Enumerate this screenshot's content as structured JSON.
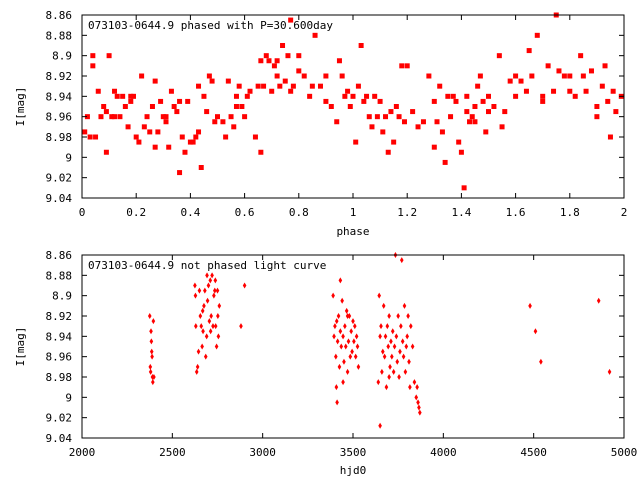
{
  "chart_data": [
    {
      "type": "scatter",
      "title": "073103-0644.9 phased with P=30.600day",
      "xlabel": "phase",
      "ylabel": "I[mag]",
      "xlim": [
        0,
        2
      ],
      "ylim": [
        9.04,
        8.86
      ],
      "y_inverted": true,
      "marker_color": "#ff0000",
      "marker": "filled-dot",
      "xticks": [
        "0",
        "0.2",
        "0.4",
        "0.6",
        "0.8",
        "1",
        "1.2",
        "1.4",
        "1.6",
        "1.8",
        "2"
      ],
      "xtick_values": [
        0,
        0.2,
        0.4,
        0.6,
        0.8,
        1,
        1.2,
        1.4,
        1.6,
        1.8,
        2
      ],
      "yticks": [
        "8.86",
        "8.88",
        "8.9",
        "8.92",
        "8.94",
        "8.96",
        "8.98",
        "9",
        "9.02",
        "9.04"
      ],
      "ytick_values": [
        8.86,
        8.88,
        8.9,
        8.92,
        8.94,
        8.96,
        8.98,
        9.0,
        9.02,
        9.04
      ],
      "points": [
        [
          0.01,
          8.975
        ],
        [
          0.02,
          8.96
        ],
        [
          0.03,
          8.98
        ],
        [
          0.04,
          8.9
        ],
        [
          0.05,
          8.98
        ],
        [
          0.06,
          8.935
        ],
        [
          0.07,
          8.96
        ],
        [
          0.08,
          8.95
        ],
        [
          0.09,
          8.995
        ],
        [
          0.1,
          8.9
        ],
        [
          0.11,
          8.96
        ],
        [
          0.12,
          8.96
        ],
        [
          0.13,
          8.94
        ],
        [
          0.15,
          8.94
        ],
        [
          0.16,
          8.95
        ],
        [
          0.17,
          8.97
        ],
        [
          0.18,
          8.94
        ],
        [
          0.19,
          8.94
        ],
        [
          0.2,
          8.98
        ],
        [
          0.21,
          8.985
        ],
        [
          0.22,
          8.92
        ],
        [
          0.23,
          8.97
        ],
        [
          0.25,
          8.975
        ],
        [
          0.27,
          8.99
        ],
        [
          0.04,
          8.91
        ],
        [
          0.09,
          8.955
        ],
        [
          0.12,
          8.935
        ],
        [
          0.14,
          8.96
        ],
        [
          0.18,
          8.945
        ],
        [
          0.24,
          8.96
        ],
        [
          0.26,
          8.95
        ],
        [
          0.28,
          8.975
        ],
        [
          0.29,
          8.945
        ],
        [
          0.3,
          8.96
        ],
        [
          0.31,
          8.96
        ],
        [
          0.32,
          8.99
        ],
        [
          0.33,
          8.935
        ],
        [
          0.34,
          8.95
        ],
        [
          0.35,
          8.955
        ],
        [
          0.36,
          9.015
        ],
        [
          0.37,
          8.98
        ],
        [
          0.38,
          8.995
        ],
        [
          0.39,
          8.945
        ],
        [
          0.4,
          8.985
        ],
        [
          0.41,
          8.985
        ],
        [
          0.42,
          8.98
        ],
        [
          0.43,
          8.975
        ],
        [
          0.44,
          9.01
        ],
        [
          0.45,
          8.94
        ],
        [
          0.46,
          8.955
        ],
        [
          0.47,
          8.92
        ],
        [
          0.48,
          8.925
        ],
        [
          0.5,
          8.96
        ],
        [
          0.52,
          8.965
        ],
        [
          0.53,
          8.98
        ],
        [
          0.54,
          8.925
        ],
        [
          0.55,
          8.96
        ],
        [
          0.56,
          8.97
        ],
        [
          0.57,
          8.95
        ],
        [
          0.58,
          8.93
        ],
        [
          0.59,
          8.95
        ],
        [
          0.6,
          8.96
        ],
        [
          0.61,
          8.94
        ],
        [
          0.62,
          8.935
        ],
        [
          0.64,
          8.98
        ],
        [
          0.65,
          8.93
        ],
        [
          0.66,
          8.995
        ],
        [
          0.67,
          8.93
        ],
        [
          0.68,
          8.9
        ],
        [
          0.69,
          8.905
        ],
        [
          0.7,
          8.935
        ],
        [
          0.71,
          8.91
        ],
        [
          0.72,
          8.92
        ],
        [
          0.73,
          8.93
        ],
        [
          0.74,
          8.89
        ],
        [
          0.75,
          8.925
        ],
        [
          0.76,
          8.9
        ],
        [
          0.77,
          8.935
        ],
        [
          0.78,
          8.93
        ],
        [
          0.8,
          8.915
        ],
        [
          0.82,
          8.92
        ],
        [
          0.84,
          8.94
        ],
        [
          0.86,
          8.88
        ],
        [
          0.88,
          8.93
        ],
        [
          0.9,
          8.945
        ],
        [
          0.92,
          8.95
        ],
        [
          0.94,
          8.965
        ],
        [
          0.96,
          8.92
        ],
        [
          0.97,
          8.94
        ],
        [
          0.98,
          8.935
        ],
        [
          0.99,
          8.95
        ],
        [
          1.0,
          8.94
        ],
        [
          0.27,
          8.925
        ],
        [
          0.31,
          8.965
        ],
        [
          0.36,
          8.945
        ],
        [
          0.43,
          8.93
        ],
        [
          0.49,
          8.965
        ],
        [
          0.57,
          8.94
        ],
        [
          0.66,
          8.905
        ],
        [
          0.72,
          8.905
        ],
        [
          0.77,
          8.865
        ],
        [
          0.8,
          8.9
        ],
        [
          0.85,
          8.93
        ],
        [
          0.9,
          8.92
        ],
        [
          0.95,
          8.905
        ],
        [
          1.01,
          8.985
        ],
        [
          1.02,
          8.93
        ],
        [
          1.03,
          8.89
        ],
        [
          1.04,
          8.945
        ],
        [
          1.05,
          8.94
        ],
        [
          1.06,
          8.96
        ],
        [
          1.07,
          8.97
        ],
        [
          1.08,
          8.94
        ],
        [
          1.09,
          8.96
        ],
        [
          1.1,
          8.945
        ],
        [
          1.11,
          8.975
        ],
        [
          1.12,
          8.96
        ],
        [
          1.13,
          8.995
        ],
        [
          1.14,
          8.955
        ],
        [
          1.15,
          8.985
        ],
        [
          1.16,
          8.95
        ],
        [
          1.17,
          8.96
        ],
        [
          1.18,
          8.91
        ],
        [
          1.19,
          8.965
        ],
        [
          1.2,
          8.91
        ],
        [
          1.22,
          8.955
        ],
        [
          1.24,
          8.97
        ],
        [
          1.26,
          8.965
        ],
        [
          1.28,
          8.92
        ],
        [
          1.3,
          8.945
        ],
        [
          1.31,
          8.965
        ],
        [
          1.32,
          8.93
        ],
        [
          1.33,
          8.975
        ],
        [
          1.35,
          8.94
        ],
        [
          1.36,
          8.96
        ],
        [
          1.37,
          8.94
        ],
        [
          1.38,
          8.945
        ],
        [
          1.39,
          8.985
        ],
        [
          1.4,
          8.995
        ],
        [
          1.41,
          9.03
        ],
        [
          1.42,
          8.94
        ],
        [
          1.43,
          8.965
        ],
        [
          1.44,
          8.96
        ],
        [
          1.45,
          8.95
        ],
        [
          1.46,
          8.93
        ],
        [
          1.47,
          8.92
        ],
        [
          1.48,
          8.945
        ],
        [
          1.49,
          8.975
        ],
        [
          1.5,
          8.94
        ],
        [
          1.52,
          8.95
        ],
        [
          1.54,
          8.9
        ],
        [
          1.56,
          8.955
        ],
        [
          1.58,
          8.925
        ],
        [
          1.6,
          8.94
        ],
        [
          1.62,
          8.925
        ],
        [
          1.64,
          8.935
        ],
        [
          1.66,
          8.92
        ],
        [
          1.68,
          8.88
        ],
        [
          1.7,
          8.94
        ],
        [
          1.72,
          8.91
        ],
        [
          1.74,
          8.935
        ],
        [
          1.75,
          8.86
        ],
        [
          1.76,
          8.915
        ],
        [
          1.78,
          8.92
        ],
        [
          1.8,
          8.935
        ],
        [
          1.82,
          8.94
        ],
        [
          1.84,
          8.9
        ],
        [
          1.85,
          8.92
        ],
        [
          1.86,
          8.935
        ],
        [
          1.88,
          8.915
        ],
        [
          1.9,
          8.95
        ],
        [
          1.92,
          8.93
        ],
        [
          1.93,
          8.91
        ],
        [
          1.94,
          8.945
        ],
        [
          1.96,
          8.935
        ],
        [
          1.97,
          8.955
        ],
        [
          1.99,
          8.94
        ],
        [
          1.3,
          8.99
        ],
        [
          1.34,
          9.005
        ],
        [
          1.42,
          8.955
        ],
        [
          1.45,
          8.965
        ],
        [
          1.5,
          8.955
        ],
        [
          1.55,
          8.97
        ],
        [
          1.6,
          8.92
        ],
        [
          1.65,
          8.895
        ],
        [
          1.7,
          8.945
        ],
        [
          1.8,
          8.92
        ],
        [
          1.9,
          8.96
        ],
        [
          1.95,
          8.98
        ]
      ]
    },
    {
      "type": "scatter",
      "title": "073103-0644.9 not phased light curve",
      "xlabel": "hjd0",
      "ylabel": "I[mag]",
      "xlim": [
        2000,
        5000
      ],
      "ylim": [
        9.04,
        8.86
      ],
      "y_inverted": true,
      "marker_color": "#ff0000",
      "marker": "small-diamond",
      "xticks": [
        "2000",
        "2500",
        "3000",
        "3500",
        "4000",
        "4500",
        "5000"
      ],
      "xtick_values": [
        2000,
        2500,
        3000,
        3500,
        4000,
        4500,
        5000
      ],
      "yticks": [
        "8.86",
        "8.88",
        "8.9",
        "8.92",
        "8.94",
        "8.96",
        "8.98",
        "9",
        "9.02",
        "9.04"
      ],
      "ytick_values": [
        8.86,
        8.88,
        8.9,
        8.92,
        8.94,
        8.96,
        8.98,
        9.0,
        9.02,
        9.04
      ],
      "points": [
        [
          2375,
          8.92
        ],
        [
          2378,
          8.97
        ],
        [
          2380,
          8.975
        ],
        [
          2382,
          8.935
        ],
        [
          2384,
          8.945
        ],
        [
          2386,
          8.955
        ],
        [
          2388,
          8.96
        ],
        [
          2390,
          8.98
        ],
        [
          2392,
          8.985
        ],
        [
          2395,
          8.925
        ],
        [
          2398,
          8.98
        ],
        [
          2625,
          8.89
        ],
        [
          2628,
          8.9
        ],
        [
          2630,
          8.93
        ],
        [
          2635,
          8.975
        ],
        [
          2640,
          8.97
        ],
        [
          2645,
          8.955
        ],
        [
          2650,
          8.895
        ],
        [
          2655,
          8.92
        ],
        [
          2660,
          8.93
        ],
        [
          2665,
          8.95
        ],
        [
          2670,
          8.935
        ],
        [
          2675,
          8.91
        ],
        [
          2680,
          8.895
        ],
        [
          2685,
          8.96
        ],
        [
          2690,
          8.94
        ],
        [
          2695,
          8.905
        ],
        [
          2700,
          8.89
        ],
        [
          2705,
          8.925
        ],
        [
          2710,
          8.885
        ],
        [
          2715,
          8.92
        ],
        [
          2720,
          8.88
        ],
        [
          2725,
          8.93
        ],
        [
          2730,
          8.9
        ],
        [
          2735,
          8.895
        ],
        [
          2740,
          8.93
        ],
        [
          2745,
          8.95
        ],
        [
          2750,
          8.895
        ],
        [
          2755,
          8.94
        ],
        [
          2760,
          8.91
        ],
        [
          2668,
          8.915
        ],
        [
          2692,
          8.88
        ],
        [
          2712,
          8.935
        ],
        [
          2738,
          8.885
        ],
        [
          2752,
          8.92
        ],
        [
          2880,
          8.93
        ],
        [
          2900,
          8.89
        ],
        [
          3390,
          8.9
        ],
        [
          3395,
          8.94
        ],
        [
          3400,
          8.93
        ],
        [
          3405,
          8.96
        ],
        [
          3410,
          8.925
        ],
        [
          3415,
          8.945
        ],
        [
          3420,
          8.92
        ],
        [
          3425,
          8.97
        ],
        [
          3430,
          8.935
        ],
        [
          3435,
          8.95
        ],
        [
          3440,
          8.905
        ],
        [
          3445,
          8.94
        ],
        [
          3450,
          8.965
        ],
        [
          3455,
          8.93
        ],
        [
          3460,
          8.95
        ],
        [
          3465,
          8.915
        ],
        [
          3470,
          8.975
        ],
        [
          3475,
          8.945
        ],
        [
          3480,
          8.92
        ],
        [
          3485,
          8.96
        ],
        [
          3490,
          8.935
        ],
        [
          3495,
          8.955
        ],
        [
          3500,
          8.925
        ],
        [
          3505,
          8.945
        ],
        [
          3510,
          8.93
        ],
        [
          3515,
          8.96
        ],
        [
          3520,
          8.94
        ],
        [
          3525,
          8.95
        ],
        [
          3530,
          8.97
        ],
        [
          3412,
          9.005
        ],
        [
          3445,
          8.985
        ],
        [
          3430,
          8.885
        ],
        [
          3408,
          8.99
        ],
        [
          3470,
          8.92
        ],
        [
          3640,
          8.985
        ],
        [
          3645,
          8.9
        ],
        [
          3650,
          8.94
        ],
        [
          3655,
          8.93
        ],
        [
          3660,
          8.975
        ],
        [
          3665,
          8.955
        ],
        [
          3670,
          8.91
        ],
        [
          3675,
          8.96
        ],
        [
          3680,
          8.94
        ],
        [
          3685,
          8.99
        ],
        [
          3690,
          8.93
        ],
        [
          3695,
          8.95
        ],
        [
          3700,
          8.92
        ],
        [
          3705,
          8.97
        ],
        [
          3710,
          8.945
        ],
        [
          3715,
          8.96
        ],
        [
          3720,
          8.935
        ],
        [
          3725,
          8.975
        ],
        [
          3730,
          8.95
        ],
        [
          3735,
          8.86
        ],
        [
          3740,
          8.94
        ],
        [
          3745,
          8.965
        ],
        [
          3750,
          8.92
        ],
        [
          3755,
          8.98
        ],
        [
          3760,
          8.955
        ],
        [
          3765,
          8.93
        ],
        [
          3770,
          8.865
        ],
        [
          3775,
          8.945
        ],
        [
          3780,
          8.96
        ],
        [
          3785,
          8.91
        ],
        [
          3790,
          8.975
        ],
        [
          3795,
          8.95
        ],
        [
          3800,
          8.94
        ],
        [
          3805,
          8.92
        ],
        [
          3810,
          8.965
        ],
        [
          3815,
          8.99
        ],
        [
          3820,
          8.93
        ],
        [
          3830,
          8.95
        ],
        [
          3840,
          8.985
        ],
        [
          3850,
          9.0
        ],
        [
          3855,
          8.99
        ],
        [
          3860,
          9.005
        ],
        [
          3865,
          9.01
        ],
        [
          3870,
          9.015
        ],
        [
          3650,
          9.028
        ],
        [
          3700,
          8.98
        ],
        [
          4480,
          8.91
        ],
        [
          4510,
          8.935
        ],
        [
          4540,
          8.965
        ],
        [
          4860,
          8.905
        ],
        [
          4920,
          8.975
        ]
      ]
    }
  ]
}
